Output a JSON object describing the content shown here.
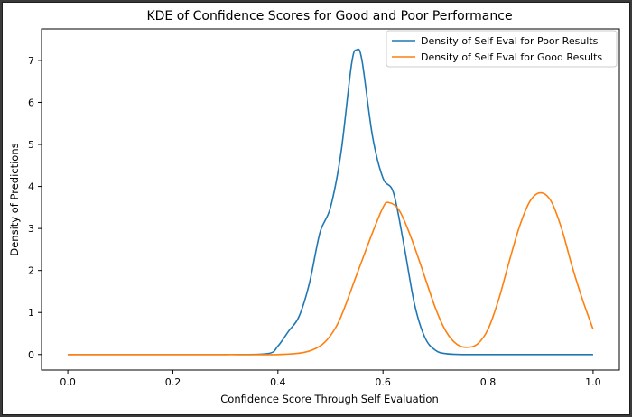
{
  "chart_data": {
    "type": "line",
    "title": "KDE of Confidence Scores for Good and Poor Performance",
    "xlabel": "Confidence Score Through Self Evaluation",
    "ylabel": "Density of Predictions",
    "xlim": [
      -0.05,
      1.05
    ],
    "ylim": [
      -0.37,
      7.75
    ],
    "xticks": [
      0.0,
      0.2,
      0.4,
      0.6,
      0.8,
      1.0
    ],
    "xtick_labels": [
      "0.0",
      "0.2",
      "0.4",
      "0.6",
      "0.8",
      "1.0"
    ],
    "yticks": [
      0,
      1,
      2,
      3,
      4,
      5,
      6,
      7
    ],
    "ytick_labels": [
      "0",
      "1",
      "2",
      "3",
      "4",
      "5",
      "6",
      "7"
    ],
    "legend_position": "top-right",
    "series": [
      {
        "name": "Density of Self Eval for Poor Results",
        "color": "#1f77b4",
        "x": [
          0.0,
          0.1,
          0.2,
          0.3,
          0.38,
          0.4,
          0.42,
          0.44,
          0.46,
          0.48,
          0.5,
          0.52,
          0.54,
          0.55,
          0.56,
          0.58,
          0.6,
          0.62,
          0.64,
          0.66,
          0.68,
          0.7,
          0.72,
          0.75,
          0.8,
          0.9,
          1.0
        ],
        "y": [
          0.0,
          0.0,
          0.0,
          0.0,
          0.02,
          0.2,
          0.55,
          0.9,
          1.7,
          2.9,
          3.5,
          4.8,
          6.9,
          7.25,
          7.0,
          5.2,
          4.2,
          3.85,
          2.6,
          1.2,
          0.4,
          0.1,
          0.02,
          0.0,
          0.0,
          0.0,
          0.0
        ]
      },
      {
        "name": "Density of Self Eval for Good Results",
        "color": "#ff7f0e",
        "x": [
          0.0,
          0.1,
          0.2,
          0.3,
          0.4,
          0.45,
          0.48,
          0.5,
          0.52,
          0.55,
          0.58,
          0.6,
          0.61,
          0.63,
          0.65,
          0.67,
          0.7,
          0.72,
          0.74,
          0.76,
          0.78,
          0.8,
          0.82,
          0.84,
          0.86,
          0.88,
          0.9,
          0.92,
          0.94,
          0.96,
          0.98,
          1.0
        ],
        "y": [
          0.0,
          0.0,
          0.0,
          0.0,
          0.0,
          0.05,
          0.2,
          0.45,
          0.9,
          1.9,
          2.9,
          3.5,
          3.62,
          3.45,
          2.9,
          2.2,
          1.1,
          0.55,
          0.25,
          0.17,
          0.25,
          0.6,
          1.3,
          2.2,
          3.05,
          3.65,
          3.85,
          3.65,
          3.0,
          2.1,
          1.3,
          0.6
        ]
      }
    ]
  }
}
